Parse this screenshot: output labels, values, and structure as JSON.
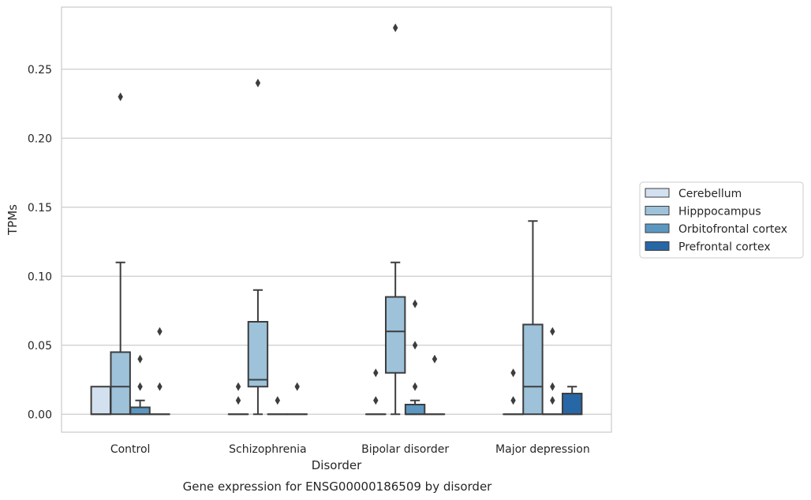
{
  "chart_data": {
    "type": "box",
    "title": "",
    "caption": "Gene expression for ENSG00000186509 by disorder",
    "xlabel": "Disorder",
    "ylabel": "TPMs",
    "ylim": [
      -0.013,
      0.295
    ],
    "yticks": [
      "0.00",
      "0.05",
      "0.10",
      "0.15",
      "0.20",
      "0.25"
    ],
    "ytick_values": [
      0.0,
      0.05,
      0.1,
      0.15,
      0.2,
      0.25
    ],
    "categories": [
      "Control",
      "Schizophrenia",
      "Bipolar disorder",
      "Major depression"
    ],
    "grid": "horizontal",
    "legend_position": "right",
    "series": [
      {
        "name": "Cerebellum",
        "color": "#d3e0ef",
        "boxes": [
          {
            "category": "Control",
            "min": 0.0,
            "q1": 0.0,
            "median": 0.0,
            "q3": 0.02,
            "max": 0.02,
            "outliers": []
          },
          {
            "category": "Schizophrenia",
            "min": 0.0,
            "q1": 0.0,
            "median": 0.0,
            "q3": 0.0,
            "max": 0.0,
            "outliers": [
              0.01,
              0.02
            ]
          },
          {
            "category": "Bipolar disorder",
            "min": 0.0,
            "q1": 0.0,
            "median": 0.0,
            "q3": 0.0,
            "max": 0.0,
            "outliers": [
              0.01,
              0.03
            ]
          },
          {
            "category": "Major depression",
            "min": 0.0,
            "q1": 0.0,
            "median": 0.0,
            "q3": 0.0,
            "max": 0.0,
            "outliers": [
              0.01,
              0.03
            ]
          }
        ]
      },
      {
        "name": "Hipppocampus",
        "color": "#9dc2da",
        "boxes": [
          {
            "category": "Control",
            "min": 0.0,
            "q1": 0.0,
            "median": 0.02,
            "q3": 0.045,
            "max": 0.11,
            "outliers": [
              0.23
            ]
          },
          {
            "category": "Schizophrenia",
            "min": 0.0,
            "q1": 0.02,
            "median": 0.025,
            "q3": 0.067,
            "max": 0.09,
            "outliers": [
              0.24
            ]
          },
          {
            "category": "Bipolar disorder",
            "min": 0.0,
            "q1": 0.03,
            "median": 0.06,
            "q3": 0.085,
            "max": 0.11,
            "outliers": [
              0.28
            ]
          },
          {
            "category": "Major depression",
            "min": 0.0,
            "q1": 0.0,
            "median": 0.02,
            "q3": 0.065,
            "max": 0.14,
            "outliers": []
          }
        ]
      },
      {
        "name": "Orbitofrontal cortex",
        "color": "#5c97c1",
        "boxes": [
          {
            "category": "Control",
            "min": 0.0,
            "q1": 0.0,
            "median": 0.0,
            "q3": 0.005,
            "max": 0.01,
            "outliers": [
              0.02,
              0.04
            ]
          },
          {
            "category": "Schizophrenia",
            "min": 0.0,
            "q1": 0.0,
            "median": 0.0,
            "q3": 0.0,
            "max": 0.0,
            "outliers": [
              0.01
            ]
          },
          {
            "category": "Bipolar disorder",
            "min": 0.0,
            "q1": 0.0,
            "median": 0.0,
            "q3": 0.007,
            "max": 0.01,
            "outliers": [
              0.02,
              0.05,
              0.08
            ]
          },
          {
            "category": "Major depression",
            "min": 0.0,
            "q1": 0.0,
            "median": 0.0,
            "q3": 0.0,
            "max": 0.0,
            "outliers": [
              0.01,
              0.02,
              0.06
            ]
          }
        ]
      },
      {
        "name": "Prefrontal cortex",
        "color": "#2767a6",
        "boxes": [
          {
            "category": "Control",
            "min": 0.0,
            "q1": 0.0,
            "median": 0.0,
            "q3": 0.0,
            "max": 0.0,
            "outliers": [
              0.02,
              0.06
            ]
          },
          {
            "category": "Schizophrenia",
            "min": 0.0,
            "q1": 0.0,
            "median": 0.0,
            "q3": 0.0,
            "max": 0.0,
            "outliers": [
              0.02
            ]
          },
          {
            "category": "Bipolar disorder",
            "min": 0.0,
            "q1": 0.0,
            "median": 0.0,
            "q3": 0.0,
            "max": 0.0,
            "outliers": [
              0.04
            ]
          },
          {
            "category": "Major depression",
            "min": 0.0,
            "q1": 0.0,
            "median": 0.0,
            "q3": 0.015,
            "max": 0.02,
            "outliers": []
          }
        ]
      }
    ]
  }
}
